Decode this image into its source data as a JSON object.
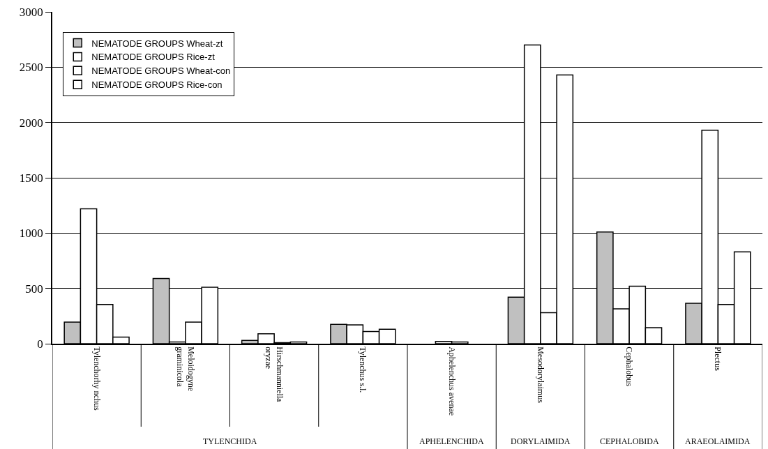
{
  "chart_data": {
    "type": "bar",
    "categories": [
      "Tylenchorhy nchus",
      "Meloidogyne\ngraminicola",
      "Hirschmanniella\noryzae",
      "Tylenchus s.l.",
      "Aphelenchus avenae",
      "Mesodorylaimus",
      "Cephalobus",
      "Plectus"
    ],
    "series": [
      {
        "name": "NEMATODE GROUPS Wheat-zt",
        "color": "#c0c0c0",
        "values": [
          195,
          590,
          30,
          175,
          null,
          420,
          1010,
          365
        ]
      },
      {
        "name": "NEMATODE GROUPS Rice-zt",
        "color": "#ffffff",
        "values": [
          1220,
          15,
          90,
          170,
          20,
          2700,
          315,
          1930
        ]
      },
      {
        "name": "NEMATODE GROUPS Wheat-con",
        "color": "#ffffff",
        "values": [
          355,
          195,
          10,
          110,
          15,
          280,
          520,
          355
        ]
      },
      {
        "name": "NEMATODE GROUPS Rice-con",
        "color": "#ffffff",
        "values": [
          60,
          510,
          15,
          130,
          null,
          2430,
          145,
          830
        ]
      }
    ],
    "annotations": [
      "TYLENCHIDA",
      "APHELENCHIDA",
      "DORYLAIMIDA",
      "CEPHALOBIDA",
      "ARAEOLAIMIDA"
    ],
    "ylim": [
      0,
      3000
    ],
    "yticks": [
      0,
      500,
      1000,
      1500,
      2000,
      2500,
      3000
    ],
    "grid": "y",
    "legend": "top left"
  }
}
